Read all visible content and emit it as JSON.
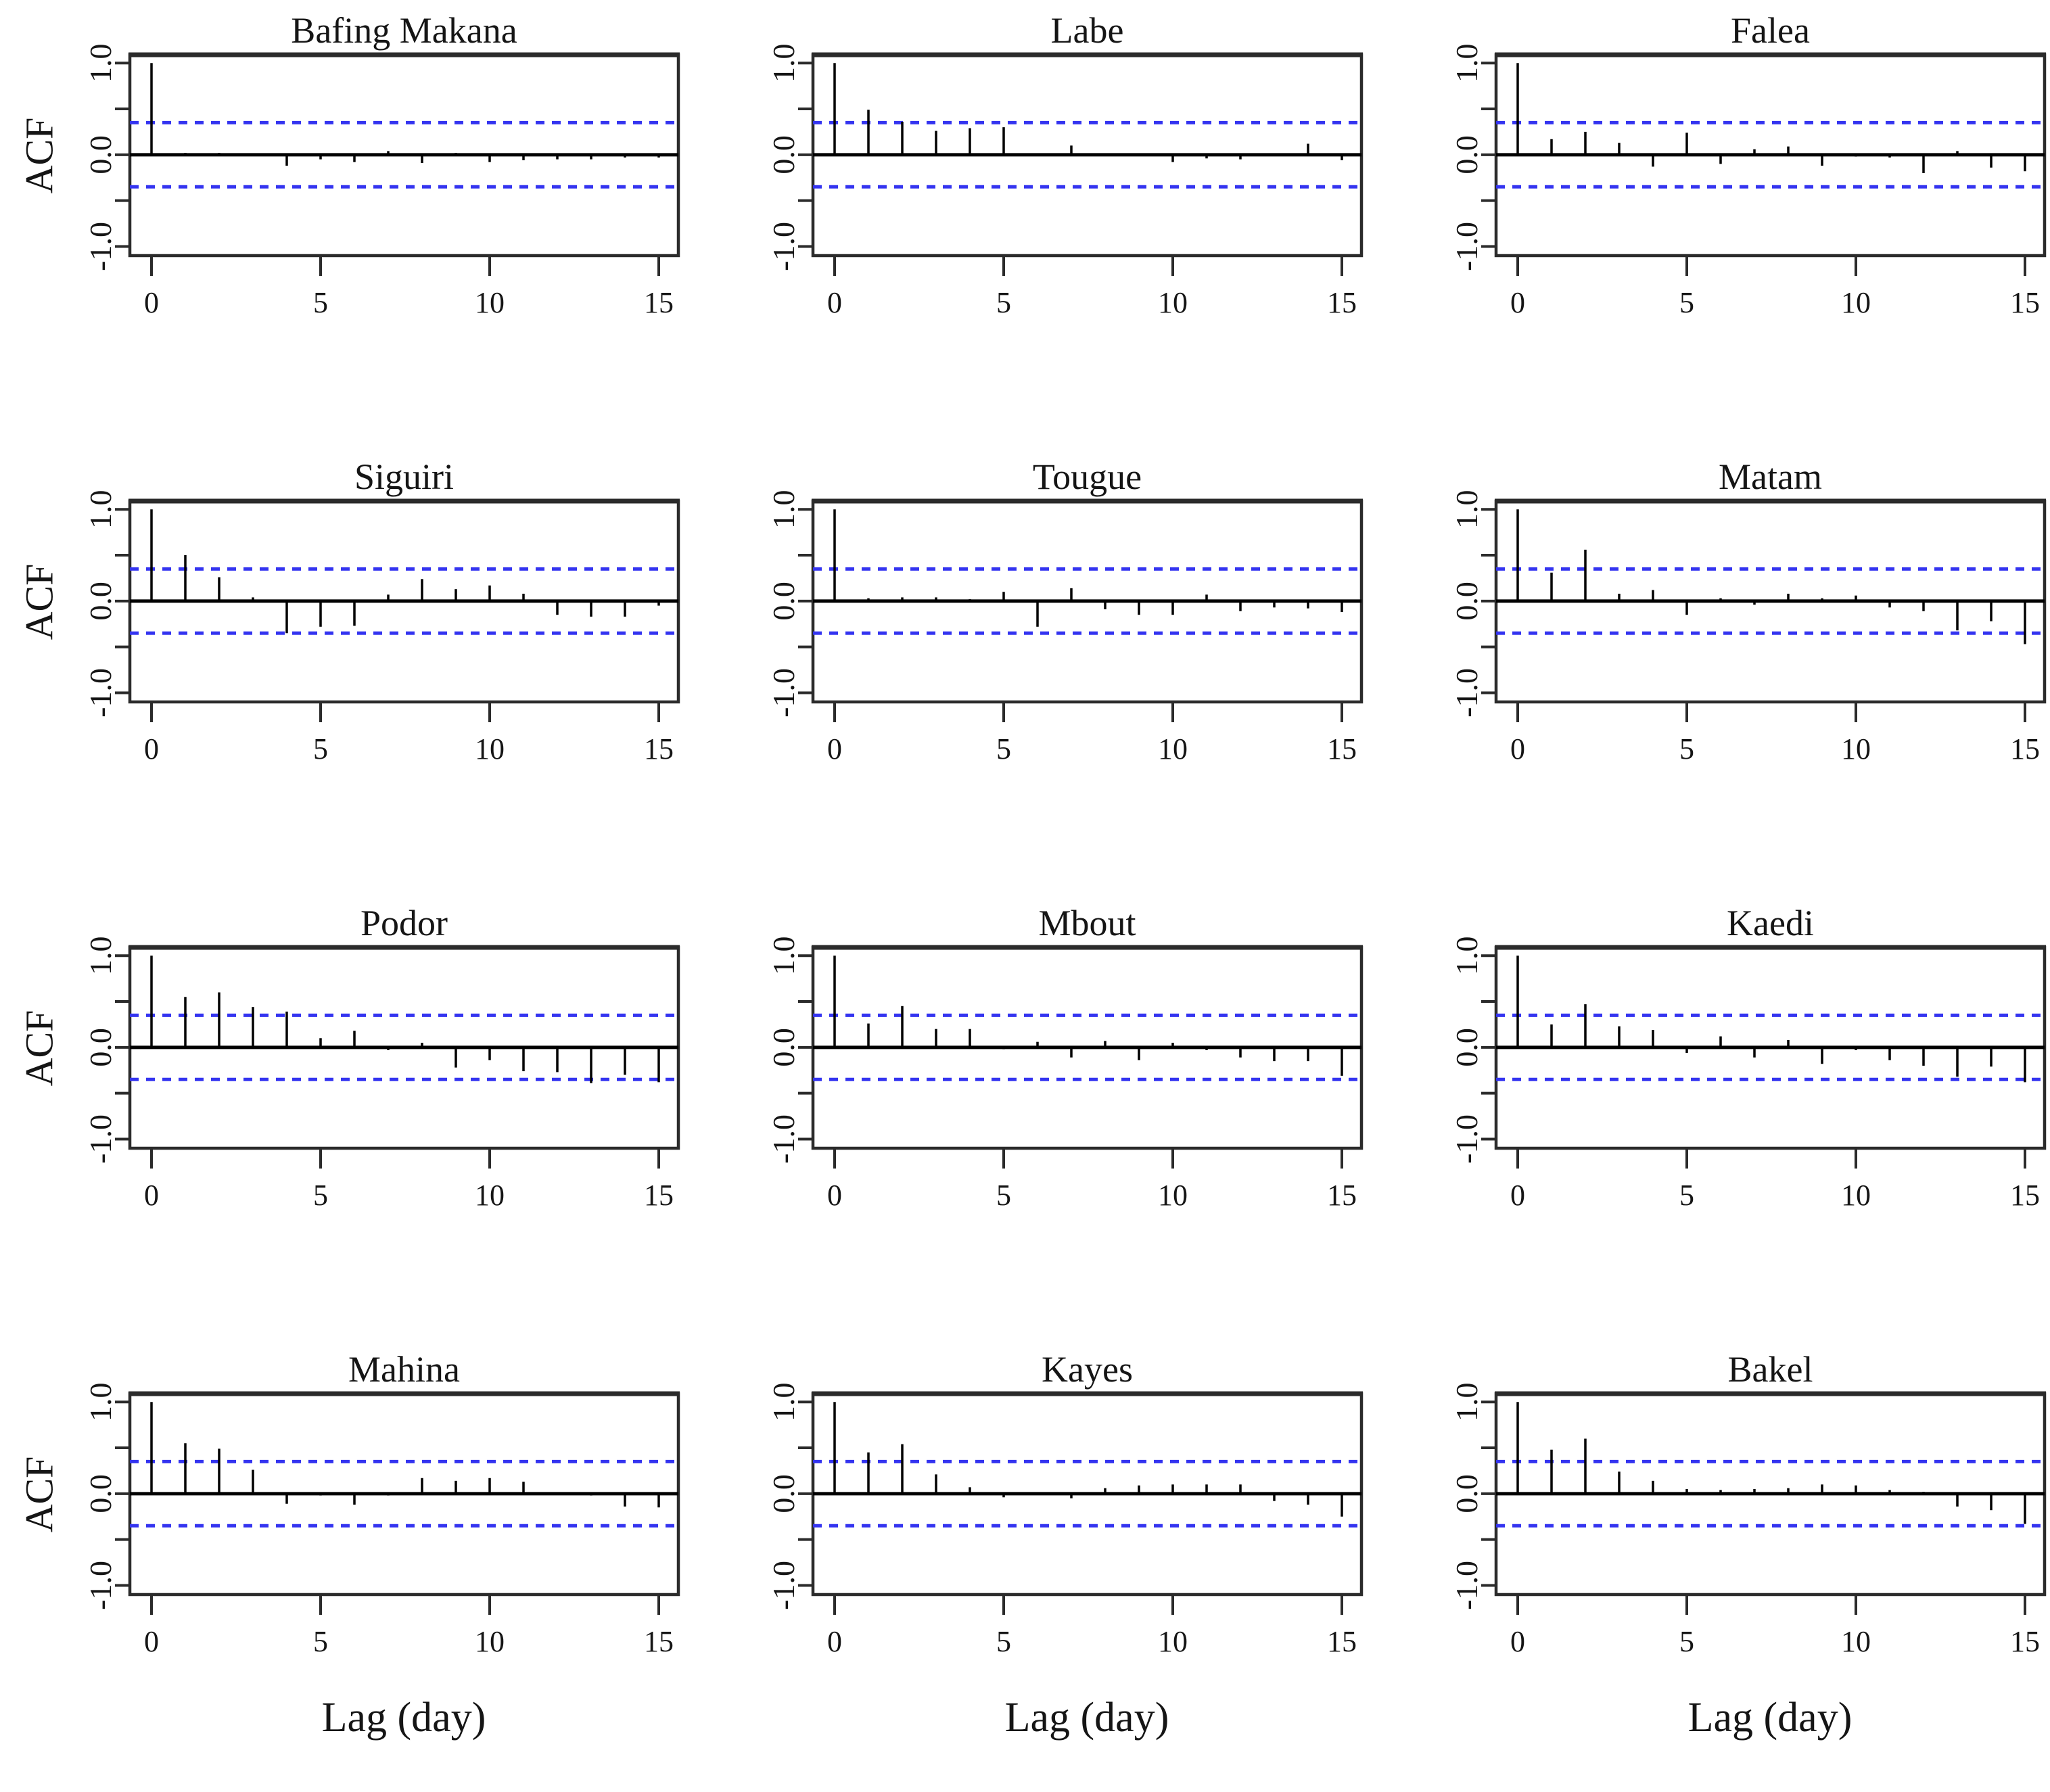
{
  "figure": {
    "ylabel": "ACF",
    "xlabel": "Lag (day)"
  },
  "axes": {
    "ylim": [
      -1.1,
      1.09
    ],
    "xlim": [
      0,
      15
    ],
    "conf_band": 0.35,
    "y_tick_values": [
      -1,
      -0.5,
      0,
      0.5,
      1
    ],
    "y_tick_labels": [
      "-1.0",
      "",
      "0.0",
      "",
      "1.0"
    ],
    "x_tick_values": [
      0,
      5,
      10,
      15
    ],
    "x_tick_labels": [
      "0",
      "5",
      "10",
      "15"
    ],
    "grid": "off",
    "legend": "none",
    "conf_color": "#3434f0",
    "axis_color": "#2b2b2b",
    "spike_color": "#000000"
  },
  "chart_data": [
    {
      "type": "bar",
      "title": "Bafing Makana",
      "xlabel": "Lag (day)",
      "ylabel": "ACF",
      "x": [
        0,
        1,
        2,
        3,
        4,
        5,
        6,
        7,
        8,
        9,
        10,
        11,
        12,
        13,
        14,
        15
      ],
      "values": [
        1.0,
        0.02,
        0.02,
        0.0,
        -0.12,
        -0.05,
        -0.08,
        0.04,
        -0.09,
        0.02,
        -0.08,
        -0.06,
        -0.05,
        -0.05,
        -0.03,
        -0.03
      ]
    },
    {
      "type": "bar",
      "title": "Labe",
      "xlabel": "Lag (day)",
      "ylabel": "ACF",
      "x": [
        0,
        1,
        2,
        3,
        4,
        5,
        6,
        7,
        8,
        9,
        10,
        11,
        12,
        13,
        14,
        15
      ],
      "values": [
        1.0,
        0.49,
        0.36,
        0.26,
        0.29,
        0.3,
        0.0,
        0.1,
        -0.01,
        0.0,
        -0.08,
        -0.04,
        -0.05,
        0.0,
        0.12,
        -0.06
      ]
    },
    {
      "type": "bar",
      "title": "Falea",
      "xlabel": "Lag (day)",
      "ylabel": "ACF",
      "x": [
        0,
        1,
        2,
        3,
        4,
        5,
        6,
        7,
        8,
        9,
        10,
        11,
        12,
        13,
        14,
        15
      ],
      "values": [
        1.0,
        0.17,
        0.25,
        0.13,
        -0.13,
        0.24,
        -0.1,
        0.06,
        0.09,
        -0.12,
        -0.02,
        -0.03,
        -0.2,
        0.04,
        -0.14,
        -0.18
      ]
    },
    {
      "type": "bar",
      "title": "Siguiri",
      "xlabel": "Lag (day)",
      "ylabel": "ACF",
      "x": [
        0,
        1,
        2,
        3,
        4,
        5,
        6,
        7,
        8,
        9,
        10,
        11,
        12,
        13,
        14,
        15
      ],
      "values": [
        1.0,
        0.5,
        0.26,
        0.04,
        -0.35,
        -0.28,
        -0.27,
        0.07,
        0.24,
        0.13,
        0.17,
        0.08,
        -0.15,
        -0.17,
        -0.17,
        -0.05
      ]
    },
    {
      "type": "bar",
      "title": "Tougue",
      "xlabel": "Lag (day)",
      "ylabel": "ACF",
      "x": [
        0,
        1,
        2,
        3,
        4,
        5,
        6,
        7,
        8,
        9,
        10,
        11,
        12,
        13,
        14,
        15
      ],
      "values": [
        1.0,
        0.03,
        0.04,
        0.04,
        0.02,
        0.1,
        -0.28,
        0.14,
        -0.09,
        -0.15,
        -0.15,
        0.07,
        -0.11,
        -0.07,
        -0.08,
        -0.12
      ]
    },
    {
      "type": "bar",
      "title": "Matam",
      "xlabel": "Lag (day)",
      "ylabel": "ACF",
      "x": [
        0,
        1,
        2,
        3,
        4,
        5,
        6,
        7,
        8,
        9,
        10,
        11,
        12,
        13,
        14,
        15
      ],
      "values": [
        1.0,
        0.31,
        0.56,
        0.08,
        0.12,
        -0.15,
        0.03,
        -0.04,
        0.08,
        0.03,
        0.06,
        -0.07,
        -0.11,
        -0.32,
        -0.22,
        -0.47
      ]
    },
    {
      "type": "bar",
      "title": "Podor",
      "xlabel": "Lag (day)",
      "ylabel": "ACF",
      "x": [
        0,
        1,
        2,
        3,
        4,
        5,
        6,
        7,
        8,
        9,
        10,
        11,
        12,
        13,
        14,
        15
      ],
      "values": [
        1.0,
        0.55,
        0.6,
        0.44,
        0.39,
        0.1,
        0.18,
        -0.03,
        0.05,
        -0.22,
        -0.14,
        -0.26,
        -0.27,
        -0.39,
        -0.3,
        -0.38
      ]
    },
    {
      "type": "bar",
      "title": "Mbout",
      "xlabel": "Lag (day)",
      "ylabel": "ACF",
      "x": [
        0,
        1,
        2,
        3,
        4,
        5,
        6,
        7,
        8,
        9,
        10,
        11,
        12,
        13,
        14,
        15
      ],
      "values": [
        1.0,
        0.26,
        0.45,
        0.2,
        0.2,
        -0.02,
        0.06,
        -0.11,
        0.07,
        -0.14,
        0.05,
        -0.03,
        -0.11,
        -0.15,
        -0.15,
        -0.31
      ]
    },
    {
      "type": "bar",
      "title": "Kaedi",
      "xlabel": "Lag (day)",
      "ylabel": "ACF",
      "x": [
        0,
        1,
        2,
        3,
        4,
        5,
        6,
        7,
        8,
        9,
        10,
        11,
        12,
        13,
        14,
        15
      ],
      "values": [
        1.0,
        0.25,
        0.47,
        0.23,
        0.19,
        -0.06,
        0.12,
        -0.11,
        0.08,
        -0.18,
        -0.03,
        -0.14,
        -0.2,
        -0.32,
        -0.21,
        -0.38
      ]
    },
    {
      "type": "bar",
      "title": "Mahina",
      "xlabel": "Lag (day)",
      "ylabel": "ACF",
      "x": [
        0,
        1,
        2,
        3,
        4,
        5,
        6,
        7,
        8,
        9,
        10,
        11,
        12,
        13,
        14,
        15
      ],
      "values": [
        1.0,
        0.55,
        0.49,
        0.26,
        -0.11,
        -0.02,
        -0.12,
        -0.02,
        0.17,
        0.14,
        0.17,
        0.13,
        0.0,
        -0.02,
        -0.14,
        -0.15
      ]
    },
    {
      "type": "bar",
      "title": "Kayes",
      "xlabel": "Lag (day)",
      "ylabel": "ACF",
      "x": [
        0,
        1,
        2,
        3,
        4,
        5,
        6,
        7,
        8,
        9,
        10,
        11,
        12,
        13,
        14,
        15
      ],
      "values": [
        1.0,
        0.45,
        0.54,
        0.21,
        0.07,
        -0.04,
        0.0,
        -0.05,
        0.06,
        0.09,
        0.1,
        0.1,
        0.1,
        -0.08,
        -0.12,
        -0.25
      ]
    },
    {
      "type": "bar",
      "title": "Bakel",
      "xlabel": "Lag (day)",
      "ylabel": "ACF",
      "x": [
        0,
        1,
        2,
        3,
        4,
        5,
        6,
        7,
        8,
        9,
        10,
        11,
        12,
        13,
        14,
        15
      ],
      "values": [
        1.0,
        0.48,
        0.6,
        0.24,
        0.14,
        0.05,
        0.04,
        0.05,
        0.06,
        0.1,
        0.09,
        0.04,
        0.02,
        -0.14,
        -0.18,
        -0.33
      ]
    }
  ]
}
